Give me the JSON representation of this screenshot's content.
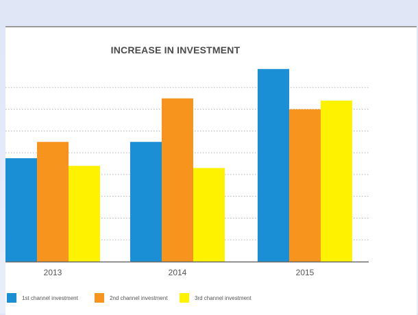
{
  "chart_data": {
    "type": "bar",
    "title": "INCREASE IN INVESTMENT",
    "categories": [
      "2013",
      "2014",
      "2015"
    ],
    "series": [
      {
        "name": "1st channel investment",
        "color": "#1a8fd6",
        "values": [
          4.75,
          5.5,
          8.85
        ]
      },
      {
        "name": "2nd channel investment",
        "color": "#f7941d",
        "values": [
          5.5,
          7.5,
          7.0
        ]
      },
      {
        "name": "3rd channel investment",
        "color": "#fef200",
        "values": [
          4.4,
          4.3,
          7.4
        ]
      }
    ],
    "ylim": [
      0,
      9
    ],
    "grid": true,
    "legend": "bottom-left"
  }
}
